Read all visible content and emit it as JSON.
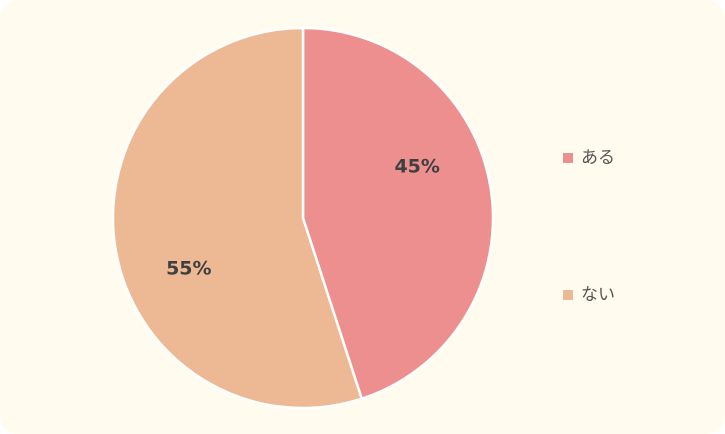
{
  "chart_data": {
    "type": "pie",
    "categories": [
      "ある",
      "ない"
    ],
    "values": [
      45,
      55
    ],
    "value_labels": [
      "45%",
      "55%"
    ],
    "colors": [
      "#ee8f8f",
      "#edb995"
    ],
    "legend": "right"
  }
}
